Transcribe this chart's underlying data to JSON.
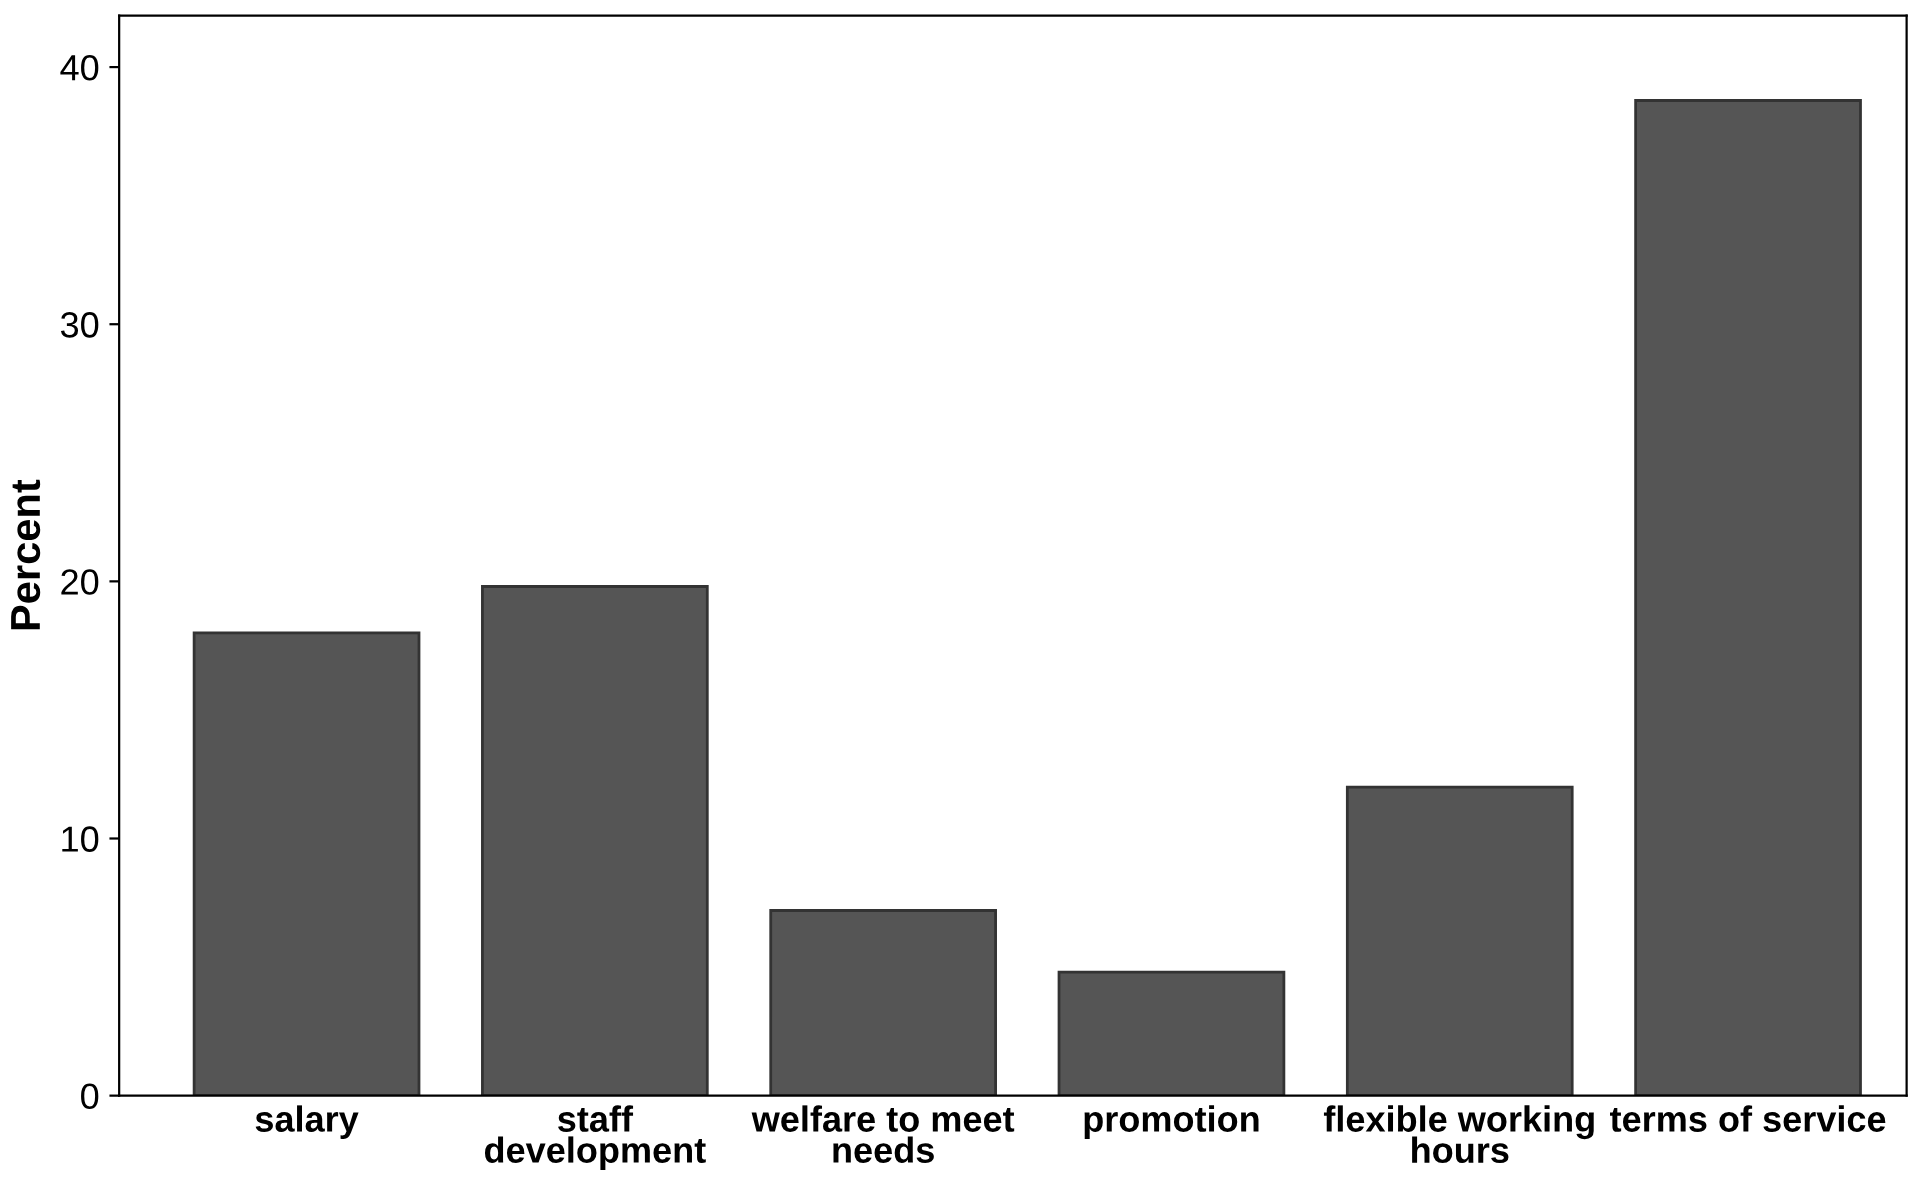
{
  "chart_data": {
    "type": "bar",
    "ylabel": "Percent",
    "categories": [
      "salary",
      "staff\ndevelopment",
      "welfare to meet\nneeds",
      "promotion",
      "flexible working\nhours",
      "terms of service"
    ],
    "values": [
      18.0,
      19.8,
      7.2,
      4.8,
      12.0,
      38.7
    ],
    "color": "#555555",
    "ylim": [
      0,
      42
    ],
    "yticks": [
      0,
      10,
      20,
      30,
      40
    ],
    "grid": false
  }
}
